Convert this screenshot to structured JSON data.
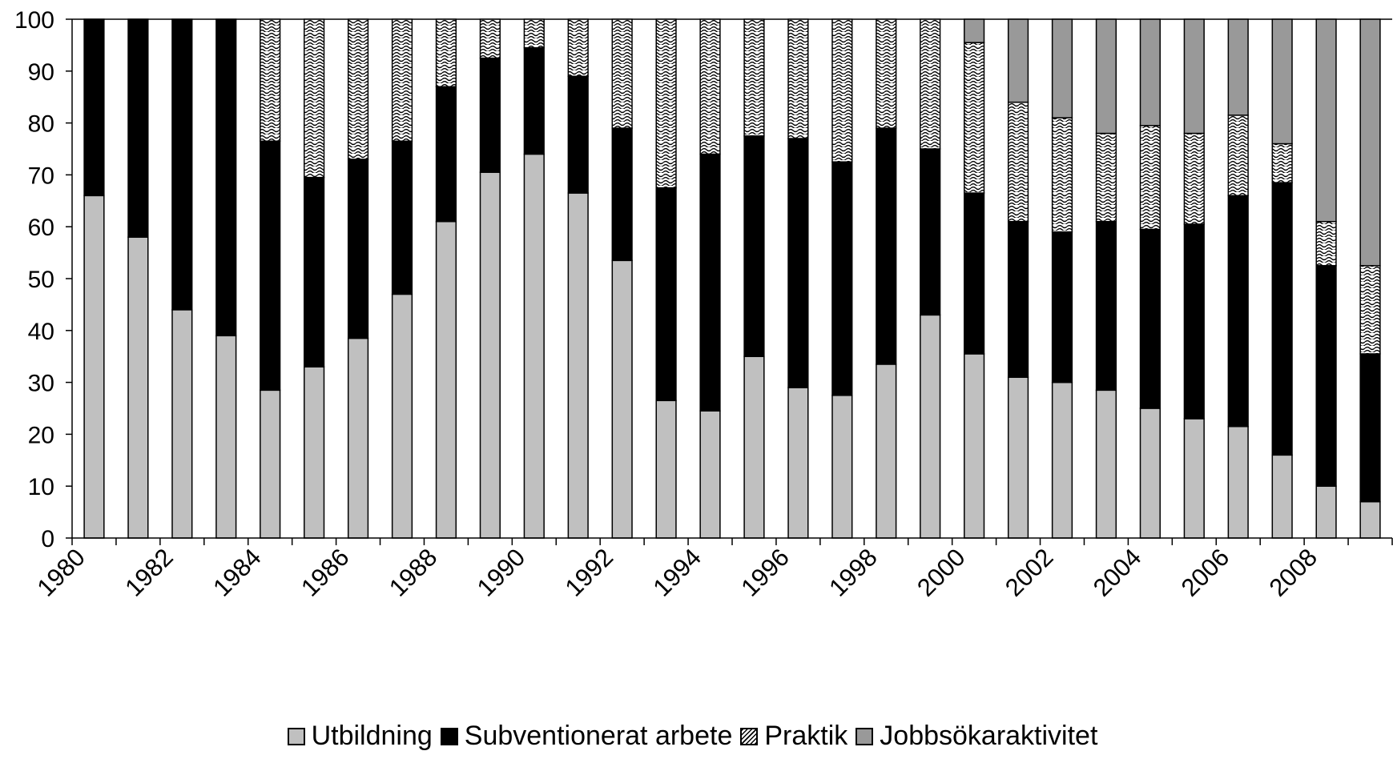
{
  "chart_data": {
    "type": "bar",
    "stacked": true,
    "title": "",
    "xlabel": "",
    "ylabel": "",
    "ylim": [
      0,
      100
    ],
    "yticks": [
      0,
      10,
      20,
      30,
      40,
      50,
      60,
      70,
      80,
      90,
      100
    ],
    "categories": [
      "1980",
      "1981",
      "1982",
      "1983",
      "1984",
      "1985",
      "1986",
      "1987",
      "1988",
      "1989",
      "1990",
      "1991",
      "1992",
      "1993",
      "1994",
      "1995",
      "1996",
      "1997",
      "1998",
      "1999",
      "2000",
      "2001",
      "2002",
      "2003",
      "2004",
      "2005",
      "2006",
      "2007",
      "2008",
      "2009"
    ],
    "xtick_labels": [
      "1980",
      "1982",
      "1984",
      "1986",
      "1988",
      "1990",
      "1992",
      "1994",
      "1996",
      "1998",
      "2000",
      "2002",
      "2004",
      "2006",
      "2008"
    ],
    "legend_position": "bottom",
    "series": [
      {
        "name": "Utbildning",
        "color": "#c0c0c0",
        "pattern": "solid",
        "values": [
          66,
          58,
          44,
          39,
          28.5,
          33,
          38.5,
          47,
          61,
          70.5,
          74,
          66.5,
          53.5,
          26.5,
          24.5,
          35,
          29,
          27.5,
          33.5,
          43,
          35.5,
          31,
          30,
          28.5,
          25,
          23,
          21.5,
          16,
          10,
          7
        ]
      },
      {
        "name": "Subventionerat arbete",
        "color": "#000000",
        "pattern": "solid",
        "values": [
          34,
          42,
          56,
          61,
          48,
          36.5,
          34.5,
          29.5,
          26,
          22,
          20.5,
          22.5,
          25.5,
          41,
          49.5,
          42.5,
          48,
          45,
          45.5,
          32,
          31,
          30,
          29,
          32.5,
          34.5,
          37.5,
          44.5,
          52.5,
          42.5,
          28.5
        ]
      },
      {
        "name": "Praktik",
        "color": "#ffffff",
        "pattern": "wave",
        "values": [
          0,
          0,
          0,
          0,
          23.5,
          30.5,
          27,
          23.5,
          13,
          7.5,
          5.5,
          11,
          21,
          32.5,
          26,
          22.5,
          23,
          27.5,
          21,
          25,
          29,
          23,
          22,
          17,
          20,
          17.5,
          15.5,
          7.5,
          8.5,
          17
        ]
      },
      {
        "name": "Jobbsökaraktivitet",
        "color": "#999999",
        "pattern": "solid",
        "values": [
          0,
          0,
          0,
          0,
          0,
          0,
          0,
          0,
          0,
          0,
          0,
          0,
          0,
          0,
          0,
          0,
          0,
          0,
          0,
          0,
          4.5,
          16,
          19,
          22,
          20.5,
          22,
          18.5,
          24,
          39,
          47.5
        ]
      }
    ]
  }
}
